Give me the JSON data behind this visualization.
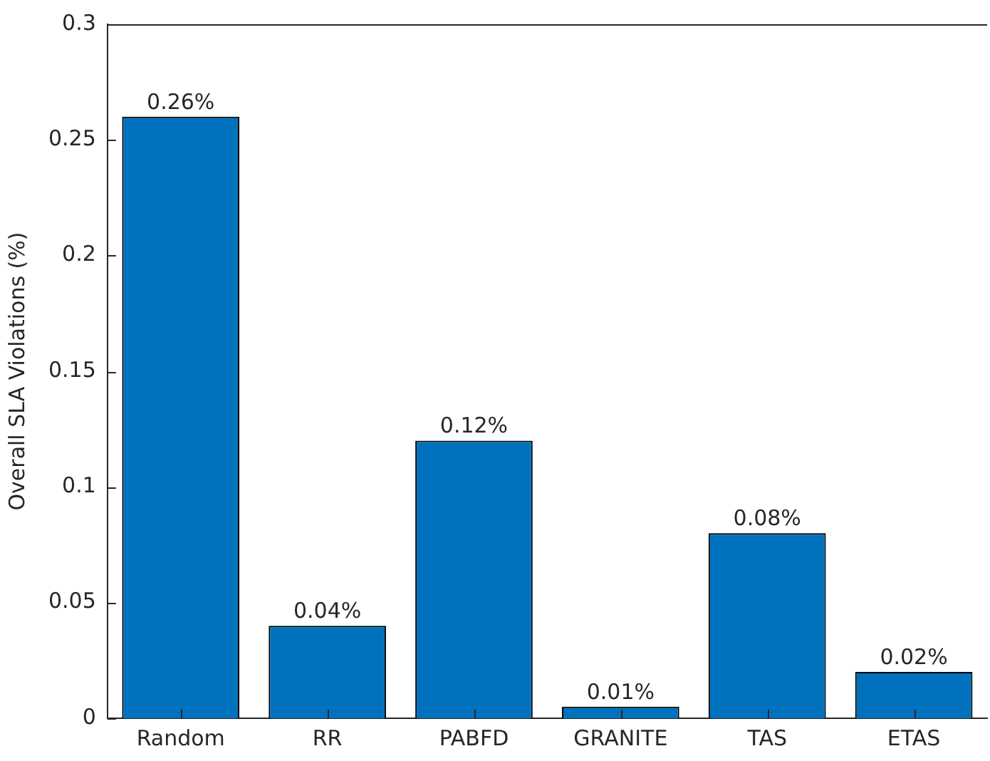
{
  "chart_data": {
    "type": "bar",
    "ylabel": "Overall SLA Violations (%)",
    "categories": [
      "Random",
      "RR",
      "PABFD",
      "GRANITE",
      "TAS",
      "ETAS"
    ],
    "values": [
      0.26,
      0.04,
      0.12,
      0.005,
      0.08,
      0.02
    ],
    "value_labels": [
      "0.26%",
      "0.04%",
      "0.12%",
      "0.01%",
      "0.08%",
      "0.02%"
    ],
    "color": "#0072bd",
    "ylim": [
      0,
      0.3
    ],
    "yticks": [
      0,
      0.05,
      0.1,
      0.15,
      0.2,
      0.25,
      0.3
    ],
    "grid": false
  }
}
